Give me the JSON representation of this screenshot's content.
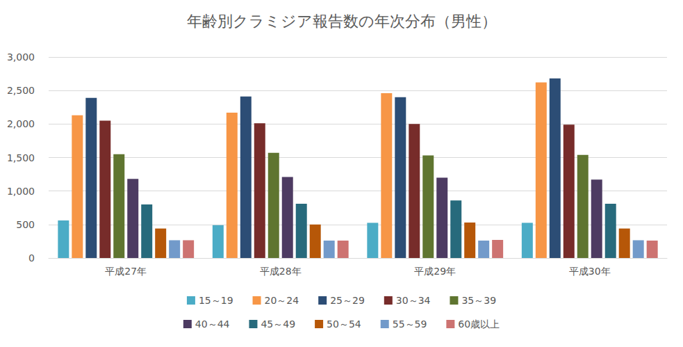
{
  "chart_data": {
    "type": "bar",
    "title": "年齢別クラミジア報告数の年次分布（男性）",
    "categories": [
      "平成27年",
      "平成28年",
      "平成29年",
      "平成30年"
    ],
    "series": [
      {
        "name": "15～19",
        "color": "#4bacc6",
        "values": [
          560,
          490,
          525,
          525
        ]
      },
      {
        "name": "20～24",
        "color": "#f79646",
        "values": [
          2130,
          2170,
          2460,
          2620
        ]
      },
      {
        "name": "25～29",
        "color": "#2c4d75",
        "values": [
          2390,
          2410,
          2400,
          2680
        ]
      },
      {
        "name": "30～34",
        "color": "#772c2a",
        "values": [
          2050,
          2010,
          2000,
          1990
        ]
      },
      {
        "name": "35～39",
        "color": "#5f7530",
        "values": [
          1550,
          1570,
          1530,
          1540
        ]
      },
      {
        "name": "40～44",
        "color": "#4d3b62",
        "values": [
          1180,
          1210,
          1200,
          1170
        ]
      },
      {
        "name": "45～49",
        "color": "#276a7c",
        "values": [
          800,
          810,
          860,
          810
        ]
      },
      {
        "name": "50～54",
        "color": "#b65708",
        "values": [
          440,
          500,
          530,
          440
        ]
      },
      {
        "name": "55～59",
        "color": "#729aca",
        "values": [
          265,
          260,
          260,
          265
        ]
      },
      {
        "name": "60歳以上",
        "color": "#cd7371",
        "values": [
          265,
          260,
          270,
          260
        ]
      }
    ],
    "ylim": [
      0,
      3000
    ],
    "yticks": [
      0,
      500,
      1000,
      1500,
      2000,
      2500,
      3000
    ],
    "grid": true,
    "legend": "bottom"
  }
}
